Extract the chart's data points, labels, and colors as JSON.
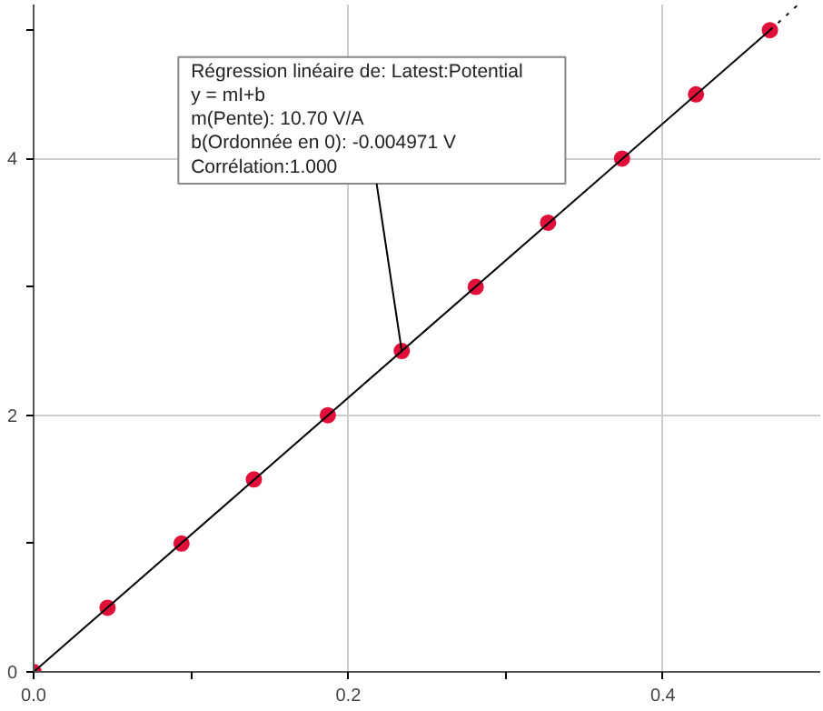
{
  "chart_data": {
    "type": "scatter",
    "x": [
      0,
      0.047,
      0.094,
      0.14,
      0.187,
      0.234,
      0.281,
      0.327,
      0.374,
      0.421,
      0.468
    ],
    "series": [
      {
        "color": "#e0103a",
        "values": [
          0,
          0.5,
          1.0,
          1.5,
          2.0,
          2.5,
          3.0,
          3.5,
          4.0,
          4.5,
          5.0
        ]
      },
      {
        "type": "line",
        "color": "#000000",
        "x": [
          0,
          0.468
        ],
        "values": [
          0,
          5.0
        ],
        "line_style": "solid",
        "marker": "none"
      },
      {
        "type": "line",
        "color": "#000000",
        "x": [
          0.468,
          0.486
        ],
        "values": [
          5.0,
          5.2
        ],
        "line_style": "dotted",
        "marker": "none"
      }
    ],
    "xlim": [
      0,
      0.5
    ],
    "ylim": [
      0,
      5.2
    ],
    "xticks": [
      {
        "value": 0,
        "label": "0.0"
      },
      {
        "value": 0.1,
        "label": null
      },
      {
        "value": 0.2,
        "label": "0.2"
      },
      {
        "value": 0.3,
        "label": null
      },
      {
        "value": 0.4,
        "label": "0.4"
      }
    ],
    "yticks": [
      0,
      {
        "value": 1,
        "label": null
      },
      2,
      {
        "value": 3,
        "label": null
      },
      4,
      {
        "value": 5,
        "label": null
      }
    ],
    "grid": true,
    "marker": "circle",
    "annotations": [
      {
        "text": "Régression linéaire de:   Latest:Potential\ny = mI+b\nm(Pente): 10.70 V/A\nb(Ordonnée en 0): -0.004971 V\nCorrélation:1.000",
        "x": 0.234,
        "y": 2.5
      }
    ]
  }
}
